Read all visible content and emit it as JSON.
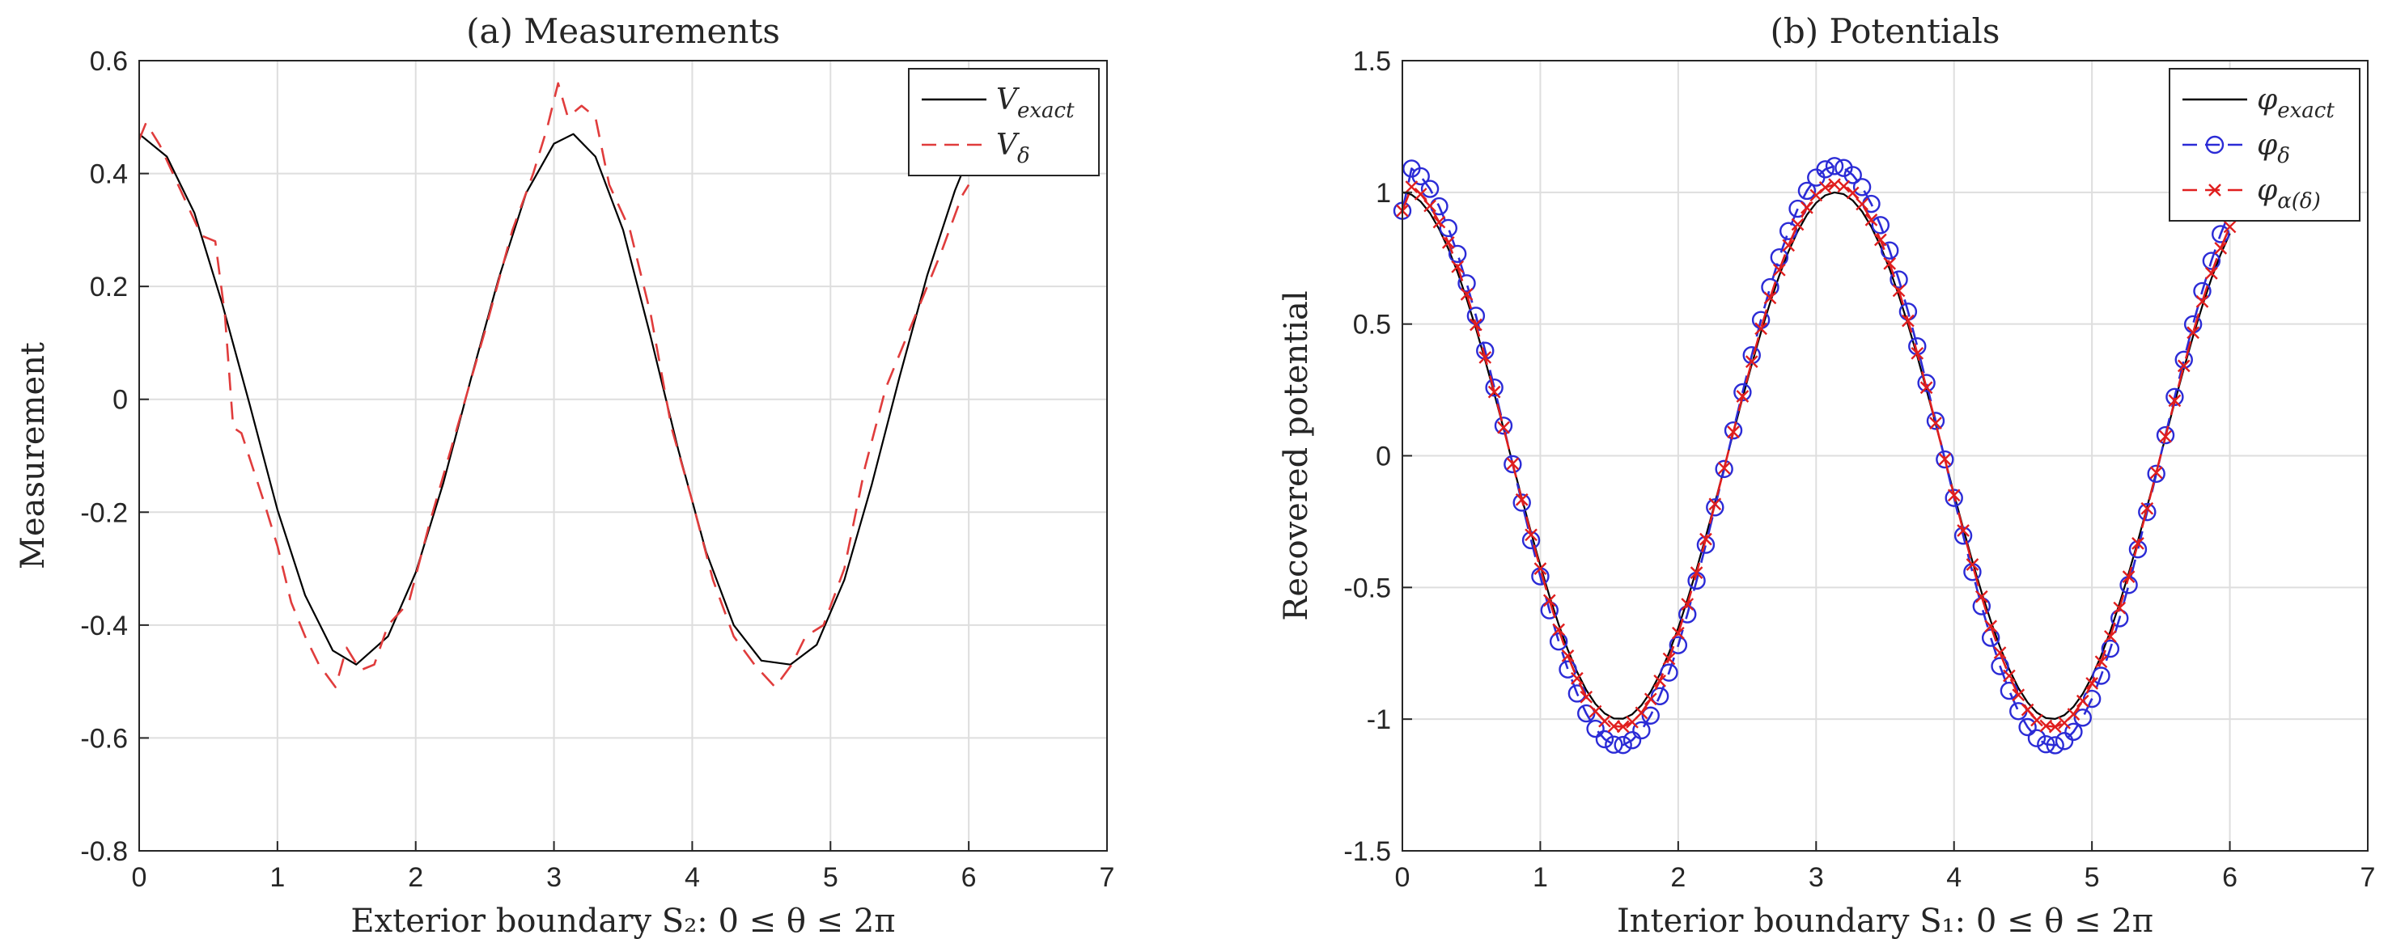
{
  "chart_data": [
    {
      "type": "line",
      "title": "(a) Measurements",
      "xlabel": "Exterior boundary S₂: 0 ≤ θ ≤ 2π",
      "ylabel": "Measurement",
      "xlim": [
        0,
        7
      ],
      "ylim": [
        -0.8,
        0.6
      ],
      "xticks": [
        "0",
        "1",
        "2",
        "3",
        "4",
        "5",
        "6",
        "7"
      ],
      "yticks": [
        "-0.8",
        "-0.6",
        "-0.4",
        "-0.2",
        "0",
        "0.2",
        "0.4",
        "0.6"
      ],
      "grid": true,
      "legend_position": "top-right",
      "series": [
        {
          "name": "V_exact",
          "legend_main": "V",
          "legend_sub": "exact",
          "color": "#000000",
          "style": "solid",
          "marker": "none",
          "x": [
            0,
            0.2,
            0.4,
            0.6,
            0.8,
            1.0,
            1.2,
            1.4,
            1.57,
            1.8,
            2.0,
            2.2,
            2.4,
            2.6,
            2.8,
            3.0,
            3.14,
            3.3,
            3.5,
            3.7,
            3.9,
            4.1,
            4.3,
            4.5,
            4.71,
            4.9,
            5.1,
            5.3,
            5.5,
            5.7,
            5.9,
            6.0
          ],
          "y": [
            0.47,
            0.43,
            0.33,
            0.17,
            -0.01,
            -0.196,
            -0.347,
            -0.445,
            -0.47,
            -0.42,
            -0.307,
            -0.148,
            0.037,
            0.214,
            0.366,
            0.453,
            0.47,
            0.43,
            0.3,
            0.11,
            -0.09,
            -0.27,
            -0.4,
            -0.463,
            -0.47,
            -0.435,
            -0.32,
            -0.15,
            0.04,
            0.22,
            0.37,
            0.43
          ]
        },
        {
          "name": "V_delta",
          "legend_main": "V",
          "legend_sub": "δ",
          "color": "#e03c3c",
          "style": "dashed",
          "marker": "none",
          "x": [
            0,
            0.05,
            0.15,
            0.3,
            0.45,
            0.55,
            0.62,
            0.68,
            0.74,
            0.82,
            0.9,
            1.0,
            1.1,
            1.2,
            1.3,
            1.42,
            1.5,
            1.6,
            1.7,
            1.8,
            1.95,
            2.1,
            2.3,
            2.5,
            2.7,
            2.85,
            2.95,
            3.03,
            3.1,
            3.2,
            3.3,
            3.4,
            3.55,
            3.7,
            3.85,
            4.0,
            4.15,
            4.3,
            4.45,
            4.6,
            4.72,
            4.82,
            4.95,
            5.1,
            5.25,
            5.4,
            5.6,
            5.8,
            5.95,
            6.0
          ],
          "y": [
            0.46,
            0.49,
            0.45,
            0.37,
            0.29,
            0.28,
            0.15,
            -0.05,
            -0.06,
            -0.12,
            -0.18,
            -0.26,
            -0.36,
            -0.42,
            -0.47,
            -0.51,
            -0.44,
            -0.48,
            -0.47,
            -0.4,
            -0.36,
            -0.22,
            -0.05,
            0.12,
            0.3,
            0.4,
            0.48,
            0.56,
            0.5,
            0.52,
            0.5,
            0.38,
            0.3,
            0.15,
            -0.05,
            -0.18,
            -0.32,
            -0.42,
            -0.47,
            -0.51,
            -0.47,
            -0.42,
            -0.4,
            -0.3,
            -0.12,
            0.02,
            0.14,
            0.26,
            0.36,
            0.38
          ]
        }
      ]
    },
    {
      "type": "line",
      "title": "(b) Potentials",
      "xlabel": "Interior boundary S₁: 0 ≤ θ ≤ 2π",
      "ylabel": "Recovered potential",
      "xlim": [
        0,
        7
      ],
      "ylim": [
        -1.5,
        1.5
      ],
      "xticks": [
        "0",
        "1",
        "2",
        "3",
        "4",
        "5",
        "6",
        "7"
      ],
      "yticks": [
        "-1.5",
        "-1",
        "-0.5",
        "0",
        "0.5",
        "1",
        "1.5"
      ],
      "grid": true,
      "legend_position": "top-right",
      "series": [
        {
          "name": "φ_exact",
          "legend_main": "φ",
          "legend_sub": "exact",
          "color": "#000000",
          "style": "solid",
          "marker": "none",
          "curve": "cos(2θ)",
          "x_range": [
            0,
            6.0
          ],
          "amplitude": 1.0
        },
        {
          "name": "φ_δ",
          "legend_main": "φ",
          "legend_sub": "δ",
          "color": "#2b2bd6",
          "style": "dashed",
          "marker": "circle",
          "curve": "cos(2θ)",
          "x_range": [
            0,
            6.0
          ],
          "amplitude": 1.1,
          "first_value": 0.93
        },
        {
          "name": "φ_α(δ)",
          "legend_main": "φ",
          "legend_sub": "α(δ)",
          "color": "#e01e1e",
          "style": "dashed",
          "marker": "x",
          "curve": "cos(2θ)",
          "x_range": [
            0,
            6.0
          ],
          "amplitude": 1.03,
          "first_value": 0.93
        }
      ]
    }
  ]
}
